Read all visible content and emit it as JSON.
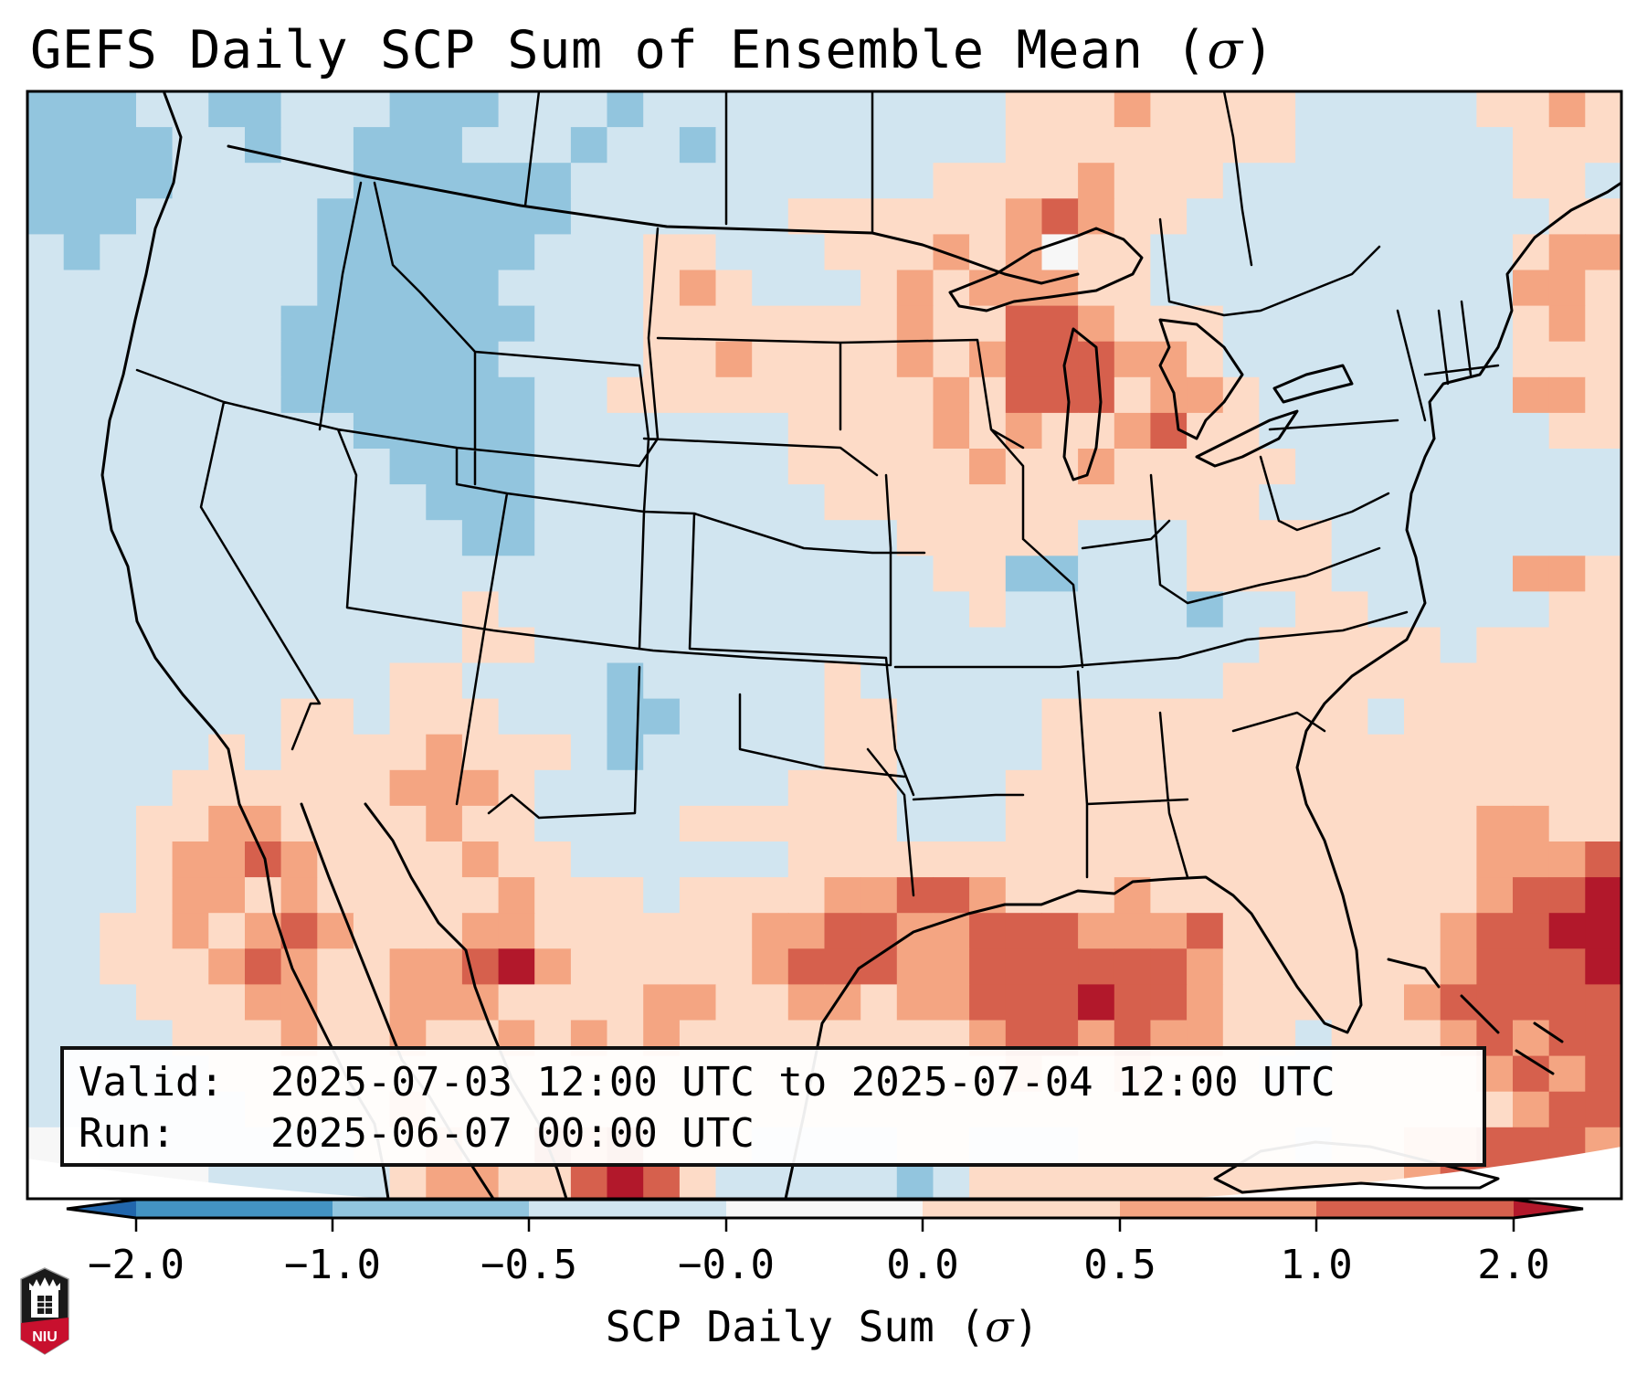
{
  "title": {
    "text": "GEFS Daily SCP Sum of Ensemble Mean (",
    "symbol": "σ",
    "close": ")"
  },
  "info": {
    "valid_label": "Valid:",
    "valid_value": "2025-07-03 12:00 UTC to 2025-07-04 12:00 UTC",
    "run_label": "Run:",
    "run_value": "2025-06-07 00:00 UTC"
  },
  "colorbar": {
    "label_text": "SCP Daily Sum (",
    "label_symbol": "σ",
    "label_close": ")",
    "ticks": [
      "−2.0",
      "−1.0",
      "−0.5",
      "−0.0",
      "0.0",
      "0.5",
      "1.0",
      "2.0"
    ],
    "levels": [
      -2.0,
      -1.0,
      -0.5,
      -0.0,
      0.0,
      0.5,
      1.0,
      2.0
    ],
    "extend": "both",
    "bins": [
      {
        "code": "A",
        "range": "< -2.0",
        "color": "#2166ac"
      },
      {
        "code": "B",
        "range": "-2.0 to -1.0",
        "color": "#4393c3"
      },
      {
        "code": "C",
        "range": "-1.0 to -0.5",
        "color": "#92c5de"
      },
      {
        "code": "D",
        "range": "-0.5 to -0.0",
        "color": "#d1e5f0"
      },
      {
        "code": "E",
        "range": "-0.0 to 0.0",
        "color": "#f7f7f7"
      },
      {
        "code": "F",
        "range": "0.0 to 0.5",
        "color": "#fddbc7"
      },
      {
        "code": "G",
        "range": "0.5 to 1.0",
        "color": "#f4a582"
      },
      {
        "code": "H",
        "range": "1.0 to 2.0",
        "color": "#d6604d"
      },
      {
        "code": "I",
        "range": "> 2.0",
        "color": "#b2182b"
      }
    ]
  },
  "logo": {
    "text": "NIU",
    "name": "Northern Illinois University"
  },
  "chart_data": {
    "type": "heatmap",
    "title": "GEFS Daily SCP Sum of Ensemble Mean (σ)",
    "variable": "SCP Daily Sum (σ)",
    "region": "Contiguous United States",
    "field_encoding": "each character is one grid cell; codes map to colorbar.bins",
    "grid": [
      "CCCDDCCDDDCCCDDDCDDDDDDDDDDFFFGFFFFDDDDDFFGF",
      "CCCCDDCDDCCCDDDCDDCDDDDDDDDFFFFFFFFDDDDDDFFF",
      "CCCCDDDDDCCCCCCDDDDDDDDDDFFFFGFFFDDDDDDDDFFD",
      "CCCDDDDDCCCCCCCDDDDDDFFFFFFGHGFFDDDDDDDDDDFF",
      "DCDDDDDDCCCCCCDDDFFDDDFFFGFGEFFDDDDDDDDDDFGG",
      "DDDDDDDDCCCCCDDDDFGFDDDFGFGGGFFDDDDDDDDDDGGF",
      "DDDDDDDCCCCCCCDDDFFFFFFFGFFHHGFFFDDDDDDDDFGF",
      "DDDDDDDCCCCCCDDDDFFGFFFFGFGHHHGGFDDDDDDDDFFF",
      "DDDDDDDCCCCCCCDDFFFFFFFFFGFHHHFGGFDDDDDDDGGF",
      "DDDDDDDDDCCCCCDDDDDDDFFFFGFGFFGHFFDDDDDDDDFF",
      "DDDDDDDDDDCCCCDDDDDDDFFFFFGFFGFFFFFDDDDDDDDD",
      "DDDDDDDDDDDCCCDDDDDDDDFFFFFFFFFFFFDDDDDDDDDD",
      "DDDDDDDDDDDDCCDDDDDDDDDDFFFFFDDDFFFFDDDDDDDD",
      "DDDDDDDDDDDDDDDDDDDDDDDDDFFCCDDDFFFFDDDDDGGF",
      "DDDDDDDDDDDDFDDDDDDDDDDDDDFDDDDDCDDFFDDDDDFF",
      "DDDDDDDDDDDDFFDDDDDDDDDDDDDDDDDDDDFFFFFDFFFF",
      "DDDDDDDDDDFFDDDDCDDDDDFDDDDDDDDDDFFFFFFFFFFF",
      "DDDDDDDFFDFFFDDDCCDDDDFFDDDDFFFFFFFFFDFFFFFF",
      "DDDDDFDFFFFGFFFDCDDDDDFFDDDDFFFFFFFFFFFFFFFF",
      "DDDDFFFFFFGGGFDDDDDDDFFFDDDFFFFFFFFFFFFFFFFF",
      "DDDFFGGFFFFGFFDDDDFFFFFFDDDFFFFFFFFFFFFFGGFF",
      "DDDFGGHGFFFFGFFDDDDDDFFFFFFFFFFFFFFFFFFFGGGH",
      "DDDFGGFGFFFFFGFFFDFFFFGGHHGFFFGFFFFFFFFFGHHI",
      "DDFFGFGHGFFFGGFFFFFFGGHHGGHHHGGGHFFFFFFGHHII",
      "DDFFFGHGFFGGHIGFFFFFGHHHGGHHHHHHGFFFFFFGHHHI",
      "DDDFFFGGFFGGGFFFFGGFFGGFGGHHHIHHGFFFFFGHHHHH",
      "DDDDFFFGFFGFFGFGFGFFFFFFFFGHHGHGGFFDFFFGHGHH",
      "DDDDDFFFFFFFFFFFFFFFFFFFFFFGFFGFFFDDFFFFGHGH",
      "DDDDDDFFFFGFFFFFFFFFFFFFFFFFFFFFFFFFFFFFFGHH",
      "EEDDDDDDDFFGFFHGHFFFDDDDFFDDDFFFFFFDFFGGHHHG",
      "EEEEEDDDDDFGGFFHIHFDDDDDCDFFFFFFFFFFFFGHHHIE"
    ]
  }
}
